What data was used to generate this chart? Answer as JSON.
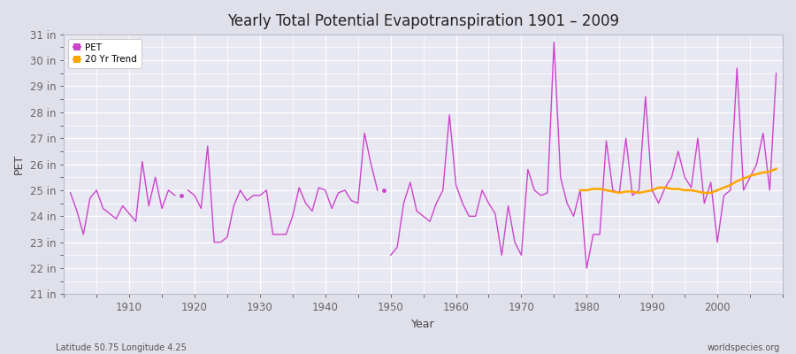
{
  "title": "Yearly Total Potential Evapotranspiration 1901 – 2009",
  "ylabel": "PET",
  "xlabel": "Year",
  "footnote_left": "Latitude 50.75 Longitude 4.25",
  "footnote_right": "worldspecies.org",
  "pet_color": "#cc44cc",
  "trend_color": "#ffa500",
  "background_color": "#e0e0ea",
  "plot_bg_color": "#e8e8f2",
  "grid_color": "#ffffff",
  "xlim": [
    1900,
    2010
  ],
  "ylim": [
    21,
    31
  ],
  "years": [
    1901,
    1902,
    1903,
    1904,
    1905,
    1906,
    1907,
    1908,
    1909,
    1910,
    1911,
    1912,
    1913,
    1914,
    1915,
    1916,
    1917,
    1919,
    1920,
    1921,
    1922,
    1923,
    1924,
    1925,
    1926,
    1927,
    1928,
    1929,
    1930,
    1931,
    1932,
    1933,
    1934,
    1935,
    1936,
    1937,
    1938,
    1939,
    1940,
    1941,
    1942,
    1943,
    1944,
    1945,
    1946,
    1947,
    1948,
    1950,
    1951,
    1952,
    1953,
    1954,
    1955,
    1956,
    1957,
    1958,
    1959,
    1960,
    1961,
    1962,
    1963,
    1964,
    1965,
    1966,
    1967,
    1968,
    1969,
    1970,
    1971,
    1972,
    1973,
    1974,
    1975,
    1976,
    1977,
    1978,
    1979,
    1980,
    1981,
    1982,
    1983,
    1984,
    1985,
    1986,
    1987,
    1988,
    1989,
    1990,
    1991,
    1992,
    1993,
    1994,
    1995,
    1996,
    1997,
    1998,
    1999,
    2000,
    2001,
    2002,
    2003,
    2004,
    2005,
    2006,
    2007,
    2008,
    2009
  ],
  "pet_values": [
    24.9,
    24.2,
    23.3,
    24.7,
    25.0,
    24.3,
    24.1,
    23.9,
    24.4,
    24.1,
    23.8,
    26.1,
    24.4,
    25.5,
    24.3,
    25.0,
    24.8,
    25.0,
    24.8,
    24.3,
    26.7,
    23.0,
    23.0,
    23.2,
    24.4,
    25.0,
    24.6,
    24.8,
    24.8,
    25.0,
    23.3,
    23.3,
    23.3,
    24.0,
    25.1,
    24.5,
    24.2,
    25.1,
    25.0,
    24.3,
    24.9,
    25.0,
    24.6,
    24.5,
    27.2,
    26.0,
    25.0,
    22.5,
    22.8,
    24.5,
    25.3,
    24.2,
    24.0,
    23.8,
    24.5,
    25.0,
    27.9,
    25.2,
    24.5,
    24.0,
    24.0,
    25.0,
    24.5,
    24.1,
    22.5,
    24.4,
    23.0,
    22.5,
    25.8,
    25.0,
    24.8,
    24.9,
    30.7,
    25.5,
    24.5,
    24.0,
    25.0,
    22.0,
    23.3,
    23.3,
    26.9,
    25.0,
    24.9,
    27.0,
    24.8,
    25.0,
    28.6,
    25.0,
    24.5,
    25.1,
    25.5,
    26.5,
    25.5,
    25.1,
    27.0,
    24.5,
    25.3,
    23.0,
    24.8,
    25.0,
    29.7,
    25.0,
    25.5,
    26.0,
    27.2,
    25.0,
    29.5
  ],
  "isolated_year_1918": 1918,
  "isolated_value_1918": 24.8,
  "isolated_year_1949": 1949,
  "isolated_value_1949": 25.0,
  "trend_years": [
    1979,
    1980,
    1981,
    1982,
    1983,
    1984,
    1985,
    1986,
    1987,
    1988,
    1989,
    1990,
    1991,
    1992,
    1993,
    1994,
    1995,
    1996,
    1997,
    1998,
    1999,
    2000,
    2001,
    2002,
    2003,
    2004,
    2005,
    2006,
    2007,
    2008,
    2009
  ],
  "trend_values": [
    25.0,
    25.0,
    25.05,
    25.05,
    25.0,
    24.95,
    24.9,
    24.95,
    24.95,
    24.9,
    24.95,
    25.0,
    25.1,
    25.1,
    25.05,
    25.05,
    25.0,
    25.0,
    24.95,
    24.9,
    24.9,
    25.0,
    25.1,
    25.2,
    25.35,
    25.45,
    25.55,
    25.62,
    25.68,
    25.72,
    25.82
  ]
}
